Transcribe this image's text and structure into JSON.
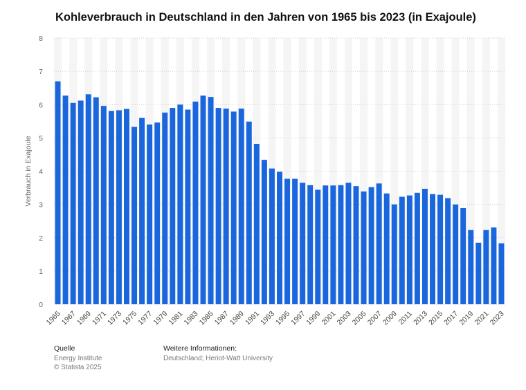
{
  "title": "Kohleverbrauch in Deutschland in den Jahren von 1965 bis 2023 (in Exajoule)",
  "footer": {
    "source_heading": "Quelle",
    "source_line1": "Energy Institute",
    "source_line2": "© Statista 2025",
    "info_heading": "Weitere Informationen:",
    "info_line1": "Deutschland; Heriot-Watt University"
  },
  "chart_data": {
    "type": "bar",
    "ylabel": "Verbrauch in Exajoule",
    "ylim": [
      0,
      8
    ],
    "yticks": [
      0,
      1,
      2,
      3,
      4,
      5,
      6,
      7,
      8
    ],
    "grid": true,
    "bar_color": "#1a66dd",
    "categories": [
      "1965",
      "1966",
      "1967",
      "1968",
      "1969",
      "1970",
      "1971",
      "1972",
      "1973",
      "1974",
      "1975",
      "1976",
      "1977",
      "1978",
      "1979",
      "1980",
      "1981",
      "1982",
      "1983",
      "1984",
      "1985",
      "1986",
      "1987",
      "1988",
      "1989",
      "1990",
      "1991",
      "1992",
      "1993",
      "1994",
      "1995",
      "1996",
      "1997",
      "1998",
      "1999",
      "2000",
      "2001",
      "2002",
      "2003",
      "2004",
      "2005",
      "2006",
      "2007",
      "2008",
      "2009",
      "2010",
      "2011",
      "2012",
      "2013",
      "2014",
      "2015",
      "2016",
      "2017",
      "2018",
      "2019",
      "2020",
      "2021",
      "2022",
      "2023"
    ],
    "tick_labels": [
      "1965",
      "1967",
      "1969",
      "1971",
      "1973",
      "1975",
      "1977",
      "1979",
      "1981",
      "1983",
      "1985",
      "1987",
      "1989",
      "1991",
      "1993",
      "1995",
      "1997",
      "1999",
      "2001",
      "2003",
      "2005",
      "2007",
      "2009",
      "2011",
      "2013",
      "2015",
      "2017",
      "2019",
      "2021",
      "2023"
    ],
    "values": [
      6.7,
      6.27,
      6.05,
      6.12,
      6.31,
      6.22,
      5.96,
      5.81,
      5.83,
      5.87,
      5.33,
      5.6,
      5.4,
      5.46,
      5.76,
      5.9,
      6.0,
      5.85,
      6.09,
      6.27,
      6.23,
      5.9,
      5.88,
      5.79,
      5.88,
      5.49,
      4.82,
      4.34,
      4.08,
      3.98,
      3.77,
      3.77,
      3.65,
      3.58,
      3.44,
      3.57,
      3.57,
      3.58,
      3.65,
      3.55,
      3.39,
      3.52,
      3.63,
      3.33,
      3.0,
      3.23,
      3.27,
      3.35,
      3.47,
      3.31,
      3.29,
      3.19,
      3.0,
      2.89,
      2.23,
      1.85,
      2.23,
      2.31,
      1.83
    ]
  }
}
